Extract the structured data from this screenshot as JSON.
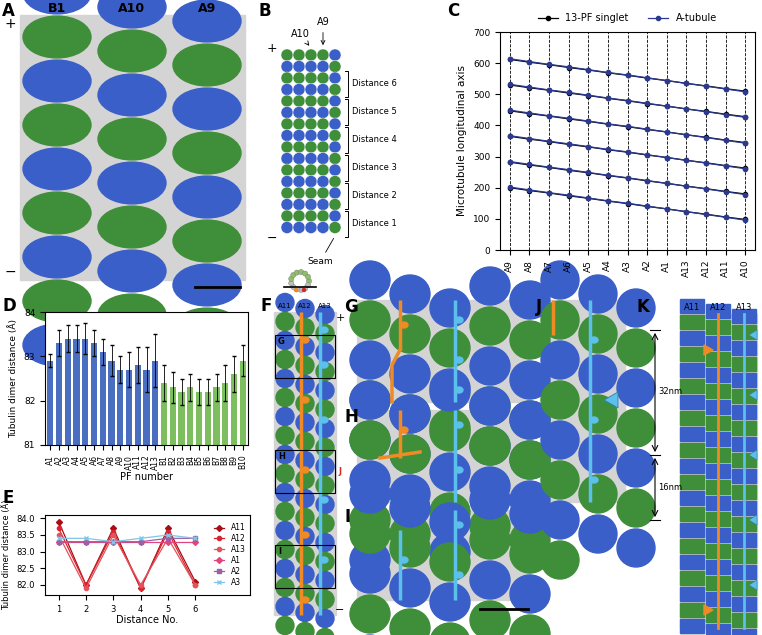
{
  "panels": {
    "A": {
      "label": "A",
      "columns": [
        "B1",
        "A10",
        "A9"
      ],
      "plus": "+",
      "minus": "−"
    },
    "B": {
      "label": "B",
      "top_labels": [
        "A9",
        "A10"
      ],
      "plus": "+",
      "minus": "−",
      "seam": "Seam",
      "distances": [
        "Distance 1",
        "Distance 2",
        "Distance 3",
        "Distance 4",
        "Distance 5",
        "Distance 6"
      ]
    },
    "F": {
      "label": "F",
      "columns": [
        "A11",
        "A12",
        "A13"
      ],
      "plus": "+",
      "minus": "−",
      "boxes": [
        "G",
        "H",
        "I"
      ],
      "side_box": "J"
    },
    "G": {
      "label": "G"
    },
    "H": {
      "label": "H"
    },
    "I": {
      "label": "I"
    },
    "J": {
      "label": "J"
    },
    "K": {
      "label": "K",
      "columns": [
        "A11",
        "A12",
        "A13"
      ],
      "spans": [
        "32nm",
        "16nm"
      ]
    }
  },
  "chart_data": [
    {
      "panel": "C",
      "type": "line",
      "categories": [
        "A9",
        "A8",
        "A7",
        "A6",
        "A5",
        "A4",
        "A3",
        "A2",
        "A1",
        "A13",
        "A12",
        "A11",
        "A10"
      ],
      "ylabel": "Microtubule longitudinal axis",
      "ylim": [
        0,
        700
      ],
      "yticks": [
        0,
        100,
        200,
        300,
        400,
        500,
        600,
        700
      ],
      "grid": "x",
      "legend": "above",
      "series": [
        {
          "name": "13-PF singlet",
          "color": "#000000",
          "marker": "circle",
          "line_style": "solid",
          "values": [
            [
              200,
              191,
              183,
              174,
              166,
              157,
              149,
              140,
              132,
              123,
              115,
              106,
              98
            ],
            [
              282,
              273,
              265,
              256,
              248,
              239,
              231,
              222,
              214,
              205,
              197,
              188,
              180
            ],
            [
              365,
              356,
              348,
              339,
              331,
              322,
              314,
              305,
              297,
              288,
              280,
              271,
              263
            ],
            [
              447,
              438,
              430,
              421,
              413,
              404,
              396,
              387,
              379,
              370,
              362,
              353,
              345
            ],
            [
              530,
              521,
              513,
              504,
              496,
              487,
              479,
              470,
              462,
              453,
              445,
              436,
              428
            ],
            [
              612,
              603,
              595,
              586,
              578,
              569,
              561,
              552,
              544,
              535,
              527,
              518,
              510
            ]
          ]
        },
        {
          "name": "A-tubule",
          "color": "#2b3990",
          "marker": "circle",
          "line_style": "solid",
          "values": [
            [
              202,
              193,
              184,
              176,
              167,
              158,
              150,
              141,
              132,
              123,
              114,
              105,
              96
            ],
            [
              284,
              275,
              266,
              258,
              249,
              240,
              232,
              223,
              214,
              205,
              196,
              187,
              178
            ],
            [
              367,
              358,
              349,
              341,
              332,
              323,
              315,
              306,
              297,
              288,
              279,
              270,
              261
            ],
            [
              449,
              440,
              431,
              423,
              414,
              405,
              397,
              388,
              379,
              370,
              361,
              352,
              343
            ],
            [
              532,
              523,
              514,
              506,
              497,
              488,
              480,
              471,
              462,
              453,
              444,
              435,
              426
            ],
            [
              614,
              605,
              596,
              588,
              579,
              570,
              562,
              553,
              544,
              535,
              526,
              517,
              508
            ]
          ]
        }
      ]
    },
    {
      "panel": "D",
      "type": "bar",
      "categories": [
        "A1",
        "A2",
        "A3",
        "A4",
        "A5",
        "A6",
        "A7",
        "A8",
        "A9",
        "A10",
        "A11",
        "A12",
        "A13",
        "B1",
        "B2",
        "B3",
        "B4",
        "B5",
        "B6",
        "B7",
        "B8",
        "B9",
        "B10"
      ],
      "values": [
        82.9,
        83.3,
        83.4,
        83.4,
        83.4,
        83.3,
        83.1,
        82.9,
        82.7,
        82.7,
        82.8,
        82.7,
        82.9,
        82.4,
        82.3,
        82.2,
        82.3,
        82.2,
        82.2,
        82.3,
        82.4,
        82.6,
        82.9
      ],
      "errors": [
        0.15,
        0.3,
        0.3,
        0.3,
        0.35,
        0.3,
        0.3,
        0.35,
        0.3,
        0.4,
        0.4,
        0.5,
        0.6,
        0.4,
        0.35,
        0.3,
        0.3,
        0.3,
        0.3,
        0.3,
        0.4,
        0.4,
        0.35
      ],
      "colors": [
        "#4a6fc0",
        "#4a6fc0",
        "#4a6fc0",
        "#4a6fc0",
        "#4a6fc0",
        "#4a6fc0",
        "#4a6fc0",
        "#4a6fc0",
        "#4a6fc0",
        "#4a6fc0",
        "#4a6fc0",
        "#4a6fc0",
        "#4a6fc0",
        "#7dbf5e",
        "#7dbf5e",
        "#7dbf5e",
        "#7dbf5e",
        "#7dbf5e",
        "#7dbf5e",
        "#7dbf5e",
        "#7dbf5e",
        "#7dbf5e",
        "#7dbf5e"
      ],
      "xlabel": "PF number",
      "ylabel": "Tubulin dimer distance (Å)",
      "ylim": [
        81,
        84
      ],
      "yticks": [
        81,
        82,
        83,
        84
      ]
    },
    {
      "panel": "E",
      "type": "line",
      "x": [
        1,
        2,
        3,
        4,
        5,
        6
      ],
      "xlabel": "Distance No.",
      "ylabel": "Tubulin dimer distance (Å)",
      "xlim": [
        0.5,
        8
      ],
      "xticks": [
        1,
        2,
        3,
        4,
        5,
        6
      ],
      "ylim": [
        81.7,
        84.1
      ],
      "yticks": [
        {
          "value": 82,
          "label": "82.0"
        },
        {
          "value": 82.5,
          "label": "82.5"
        },
        {
          "value": 83,
          "label": "83.0"
        },
        {
          "value": 83.5,
          "label": "83.5"
        },
        {
          "value": 84,
          "label": "84.0"
        }
      ],
      "legend": "center right",
      "series": [
        {
          "name": "A11",
          "color": "#a50f15",
          "marker": "diamond",
          "line_style": "solid",
          "values": [
            83.9,
            82.0,
            83.7,
            81.9,
            83.7,
            82.1
          ]
        },
        {
          "name": "A12",
          "color": "#d6262f",
          "marker": "circle",
          "line_style": "solid",
          "values": [
            83.7,
            82.0,
            83.6,
            81.9,
            83.6,
            82.0
          ]
        },
        {
          "name": "A13",
          "color": "#e8505b",
          "marker": "circle",
          "line_style": "solid",
          "values": [
            83.5,
            81.9,
            83.5,
            82.0,
            83.4,
            82.0
          ]
        },
        {
          "name": "A1",
          "color": "#e0457b",
          "marker": "diamond",
          "line_style": "solid",
          "values": [
            83.3,
            83.3,
            83.3,
            83.3,
            83.3,
            83.3
          ]
        },
        {
          "name": "A2",
          "color": "#9e5fa8",
          "marker": "square",
          "line_style": "solid",
          "values": [
            83.3,
            83.3,
            83.3,
            83.3,
            83.4,
            83.4
          ]
        },
        {
          "name": "A3",
          "color": "#7fc7e8",
          "marker": "x",
          "line_style": "solid",
          "values": [
            83.4,
            83.4,
            83.3,
            83.4,
            83.5,
            83.4
          ]
        }
      ]
    }
  ]
}
